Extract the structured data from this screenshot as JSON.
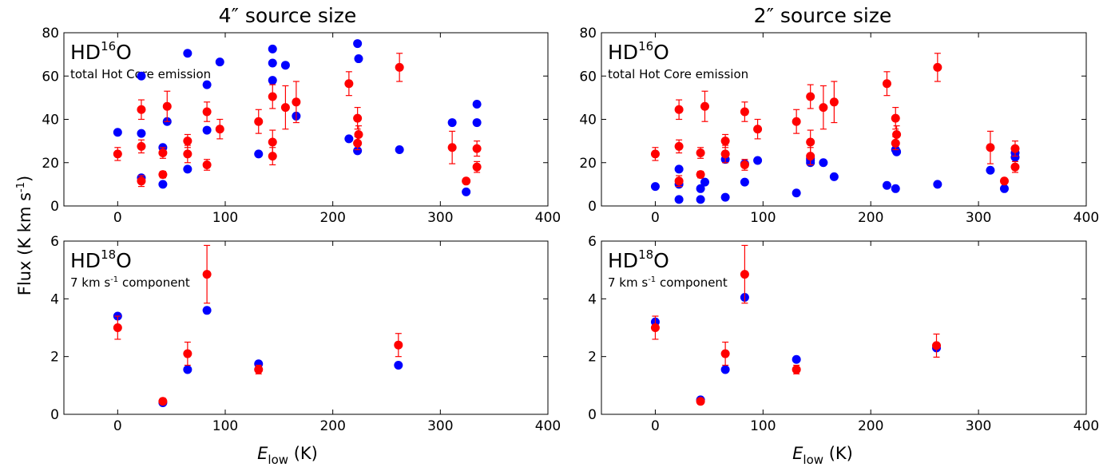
{
  "figure": {
    "ylabel": "Flux (K km s",
    "ylabel_sup": "-1",
    "ylabel_close": ")",
    "xlabel_italic": "E",
    "xlabel_sub": "low",
    "xlabel_unit": " (K)",
    "col_titles": [
      "4″ source size",
      "2″ source size"
    ]
  },
  "colors": {
    "blue": "#0000ff",
    "red": "#ff0000"
  },
  "chart_data": [
    {
      "type": "scatter",
      "panel": "top-left",
      "species": {
        "pre": "HD",
        "sup": "16",
        "post": "O"
      },
      "note": {
        "text": "total Hot Core emission"
      },
      "xlim": [
        -50,
        400
      ],
      "ylim": [
        0,
        80
      ],
      "xticks": [
        0,
        100,
        200,
        300,
        400
      ],
      "yticks": [
        0,
        20,
        40,
        60,
        80
      ],
      "series": [
        {
          "color": "blue",
          "x": [
            0,
            22,
            22,
            22,
            42,
            42,
            46,
            65,
            65,
            83,
            83,
            95,
            131,
            144,
            144,
            144,
            156,
            166,
            215,
            223,
            223,
            224,
            262,
            311,
            324,
            334,
            334
          ],
          "y": [
            34,
            13,
            33.5,
            60,
            10,
            27,
            39,
            17,
            70.5,
            35,
            56,
            66.5,
            24,
            58,
            66,
            72.5,
            65,
            41.5,
            31,
            25.5,
            75,
            68,
            26,
            38.5,
            6.5,
            38.5,
            47
          ]
        },
        {
          "color": "red",
          "x": [
            0,
            22,
            22,
            22,
            42,
            42,
            46,
            65,
            65,
            83,
            83,
            95,
            131,
            144,
            144,
            144,
            156,
            166,
            215,
            223,
            223,
            224,
            262,
            311,
            324,
            334,
            334
          ],
          "y": [
            24,
            11.5,
            27.5,
            44.5,
            14.5,
            24.5,
            46,
            24,
            30,
            19,
            43.5,
            35.5,
            39,
            23,
            29.5,
            50.5,
            45.5,
            48,
            56.5,
            29,
            40.5,
            33,
            64,
            27,
            11.5,
            18,
            26.5
          ],
          "err": [
            3,
            2.5,
            3,
            4.5,
            1.5,
            2.5,
            7,
            4,
            3,
            2.5,
            4.5,
            4.5,
            5.5,
            4,
            5.5,
            5.5,
            10,
            9.5,
            5.5,
            3,
            5,
            4,
            6.5,
            7.5,
            1,
            2.5,
            3.5
          ]
        }
      ]
    },
    {
      "type": "scatter",
      "panel": "top-right",
      "species": {
        "pre": "HD",
        "sup": "16",
        "post": "O"
      },
      "note": {
        "text": "total Hot Core emission"
      },
      "xlim": [
        -50,
        400
      ],
      "ylim": [
        0,
        80
      ],
      "xticks": [
        0,
        100,
        200,
        300,
        400
      ],
      "yticks": [
        0,
        20,
        40,
        60,
        80
      ],
      "series": [
        {
          "color": "blue",
          "x": [
            0,
            22,
            22,
            22,
            42,
            42,
            46,
            65,
            65,
            83,
            83,
            95,
            131,
            144,
            144,
            144,
            156,
            166,
            215,
            223,
            223,
            224,
            262,
            311,
            324,
            334,
            334
          ],
          "y": [
            9,
            3,
            10,
            17,
            3,
            8,
            11,
            4,
            21.5,
            11,
            19.5,
            21,
            6,
            20,
            21,
            22,
            20,
            13.5,
            9.5,
            8,
            26,
            25,
            10,
            16.5,
            8,
            22.5,
            24.5
          ]
        },
        {
          "color": "red",
          "x": [
            0,
            22,
            22,
            22,
            42,
            42,
            46,
            65,
            65,
            83,
            83,
            95,
            131,
            144,
            144,
            144,
            156,
            166,
            215,
            223,
            223,
            224,
            262,
            311,
            324,
            334,
            334
          ],
          "y": [
            24,
            11.5,
            27.5,
            44.5,
            14.5,
            24.5,
            46,
            24,
            30,
            19,
            43.5,
            35.5,
            39,
            23,
            29.5,
            50.5,
            45.5,
            48,
            56.5,
            29,
            40.5,
            33,
            64,
            27,
            11.5,
            18,
            26.5
          ],
          "err": [
            3,
            2.5,
            3,
            4.5,
            1.5,
            2.5,
            7,
            4,
            3,
            2.5,
            4.5,
            4.5,
            5.5,
            4,
            5.5,
            5.5,
            10,
            9.5,
            5.5,
            3,
            5,
            4,
            6.5,
            7.5,
            1,
            2.5,
            3.5
          ]
        }
      ]
    },
    {
      "type": "scatter",
      "panel": "bottom-left",
      "species": {
        "pre": "HD",
        "sup": "18",
        "post": "O"
      },
      "note": {
        "pre": "7 km s",
        "sup": "-1",
        "post": " component"
      },
      "xlim": [
        -50,
        400
      ],
      "ylim": [
        0,
        6
      ],
      "xticks": [
        0,
        100,
        200,
        300,
        400
      ],
      "yticks": [
        0,
        2,
        4,
        6
      ],
      "series": [
        {
          "color": "blue",
          "x": [
            0,
            42,
            65,
            83,
            131,
            261
          ],
          "y": [
            3.4,
            0.4,
            1.55,
            3.6,
            1.75,
            1.7
          ]
        },
        {
          "color": "red",
          "x": [
            0,
            42,
            65,
            83,
            131,
            261
          ],
          "y": [
            3.0,
            0.45,
            2.1,
            4.85,
            1.55,
            2.4
          ],
          "err": [
            0.4,
            0.1,
            0.4,
            1.0,
            0.15,
            0.4
          ]
        }
      ]
    },
    {
      "type": "scatter",
      "panel": "bottom-right",
      "species": {
        "pre": "HD",
        "sup": "18",
        "post": "O"
      },
      "note": {
        "pre": "7 km s",
        "sup": "-1",
        "post": " component"
      },
      "xlim": [
        -50,
        400
      ],
      "ylim": [
        0,
        6
      ],
      "xticks": [
        0,
        100,
        200,
        300,
        400
      ],
      "yticks": [
        0,
        2,
        4,
        6
      ],
      "series": [
        {
          "color": "blue",
          "x": [
            0,
            42,
            65,
            83,
            131,
            261
          ],
          "y": [
            3.2,
            0.5,
            1.55,
            4.05,
            1.9,
            2.3
          ]
        },
        {
          "color": "red",
          "x": [
            0,
            42,
            65,
            83,
            131,
            261
          ],
          "y": [
            3.0,
            0.45,
            2.1,
            4.85,
            1.55,
            2.38
          ],
          "err": [
            0.4,
            0.1,
            0.4,
            1.0,
            0.15,
            0.4
          ]
        }
      ]
    }
  ]
}
